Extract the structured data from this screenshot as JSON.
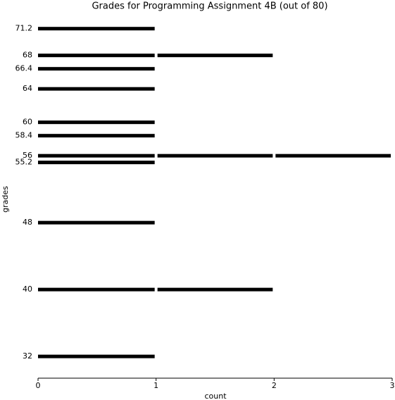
{
  "chart_data": {
    "type": "bar",
    "orientation": "horizontal",
    "title": "Grades for Programming Assignment 4B (out of 80)",
    "xlabel": "count",
    "ylabel": "grades",
    "y": [
      71.2,
      68,
      66.4,
      64,
      60,
      58.4,
      56,
      55.2,
      48,
      40,
      32
    ],
    "values": [
      1,
      2,
      1,
      1,
      1,
      1,
      3,
      1,
      1,
      2,
      1
    ],
    "color": "#000000",
    "xlim": [
      0,
      3
    ],
    "xticks": [
      0,
      1,
      2,
      3
    ],
    "ylim": [
      29.4,
      72.1
    ],
    "yticks": [
      71.2,
      68,
      66.4,
      64,
      60,
      58.4,
      56,
      55.2,
      48,
      40,
      32
    ]
  }
}
